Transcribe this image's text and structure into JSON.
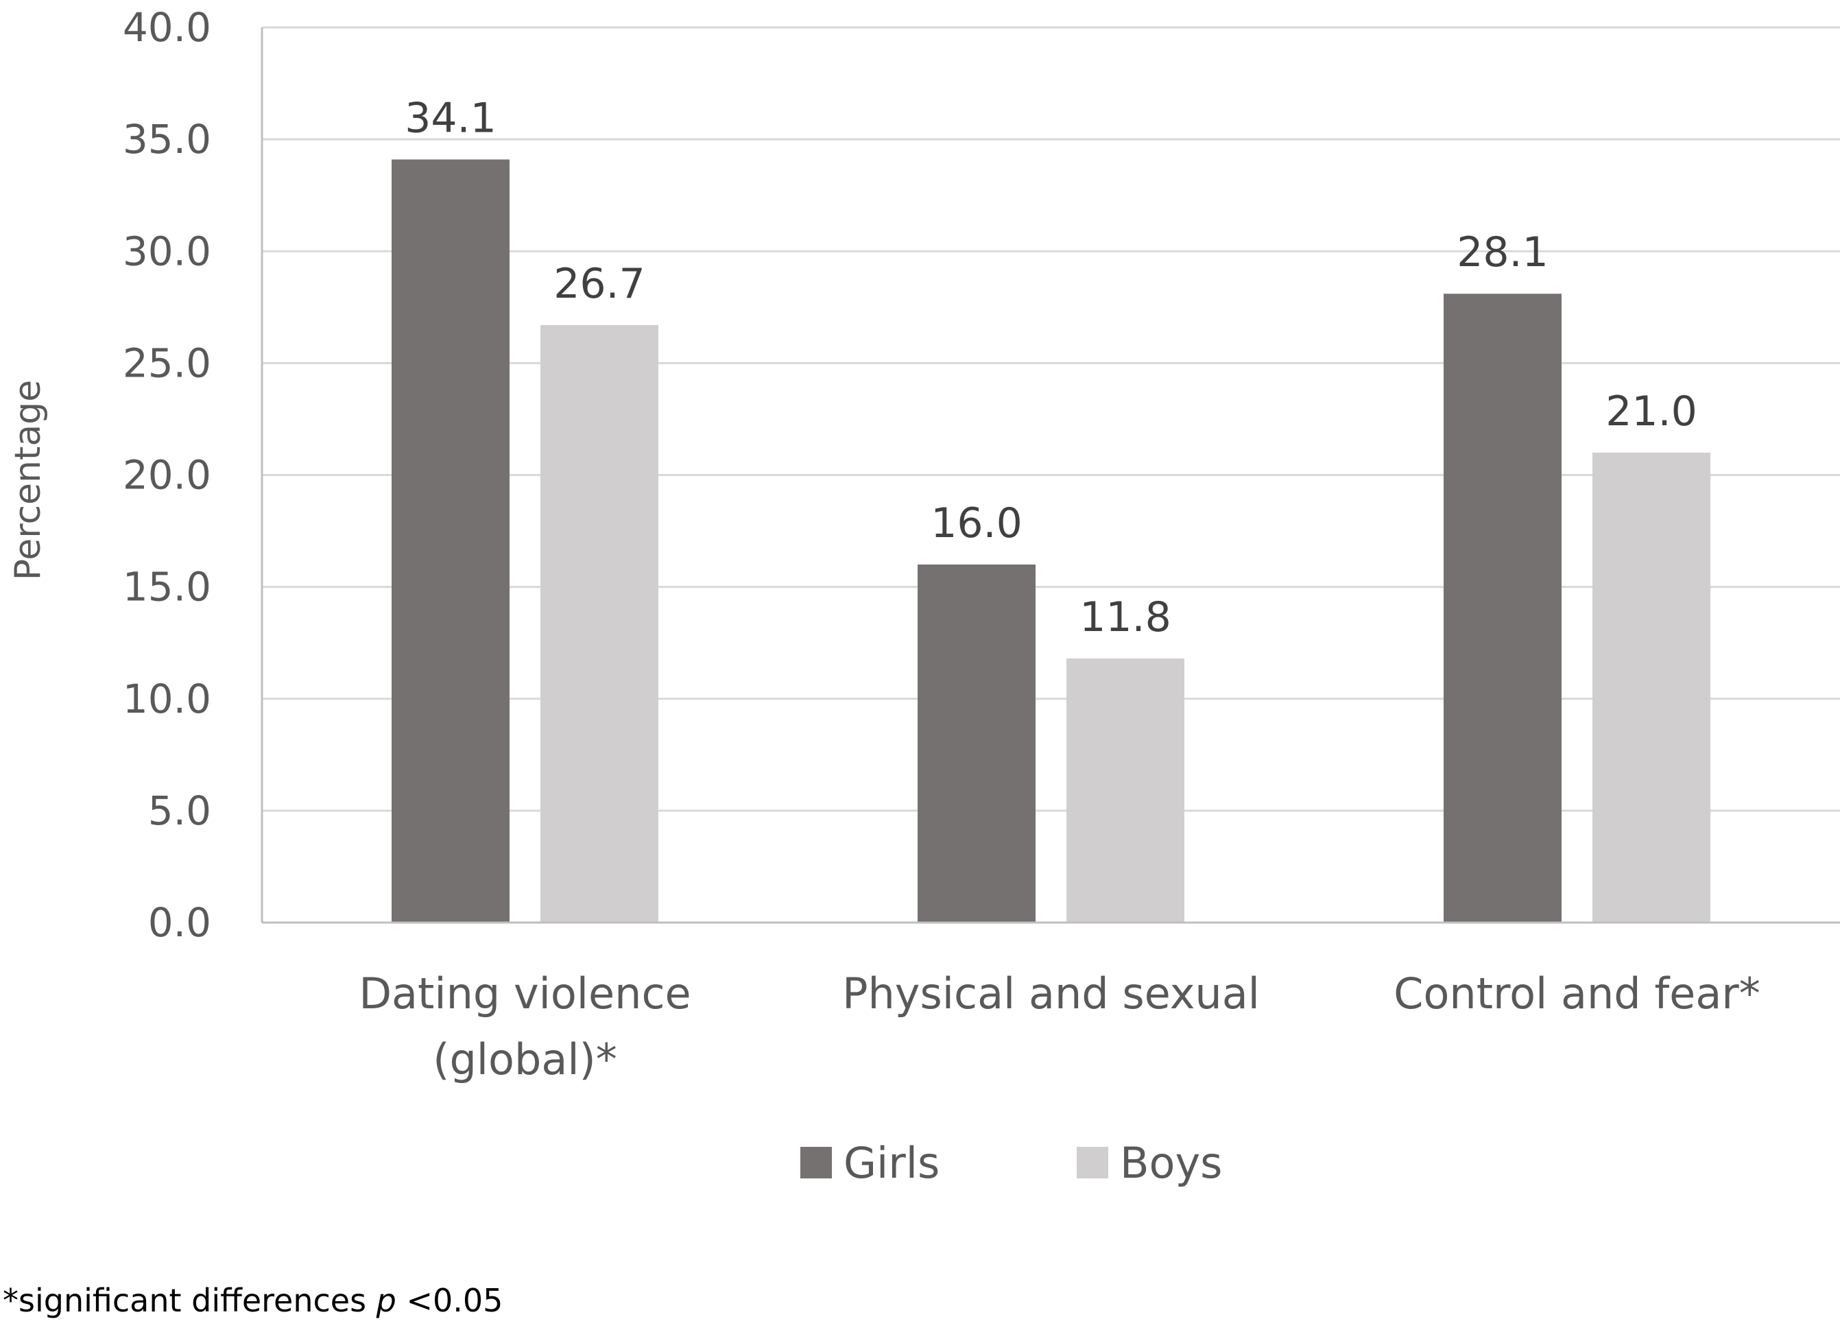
{
  "chart_data": {
    "type": "bar",
    "categories": [
      [
        "Dating violence",
        "(global)*"
      ],
      [
        "Physical and sexual"
      ],
      [
        "Control and fear*"
      ]
    ],
    "series": [
      {
        "name": "Girls",
        "color": "#767171",
        "values": [
          34.1,
          16.0,
          28.1
        ]
      },
      {
        "name": "Boys",
        "color": "#d0cece",
        "values": [
          26.7,
          11.8,
          21.0
        ]
      }
    ],
    "value_labels": [
      [
        "34.1",
        "16.0",
        "28.1"
      ],
      [
        "26.7",
        "11.8",
        "21.0"
      ]
    ],
    "ylabel": "Percentage",
    "ylim": [
      0,
      40
    ],
    "yticks": [
      "0.0",
      "5.0",
      "10.0",
      "15.0",
      "20.0",
      "25.0",
      "30.0",
      "35.0",
      "40.0"
    ],
    "grid": true,
    "gridline_color": "#d9d9d9",
    "axis_color": "#bfbfbf",
    "legend_position": "bottom",
    "footnote": {
      "prefix": "*significant differences ",
      "italic": "p",
      "suffix": " <0.05"
    }
  }
}
